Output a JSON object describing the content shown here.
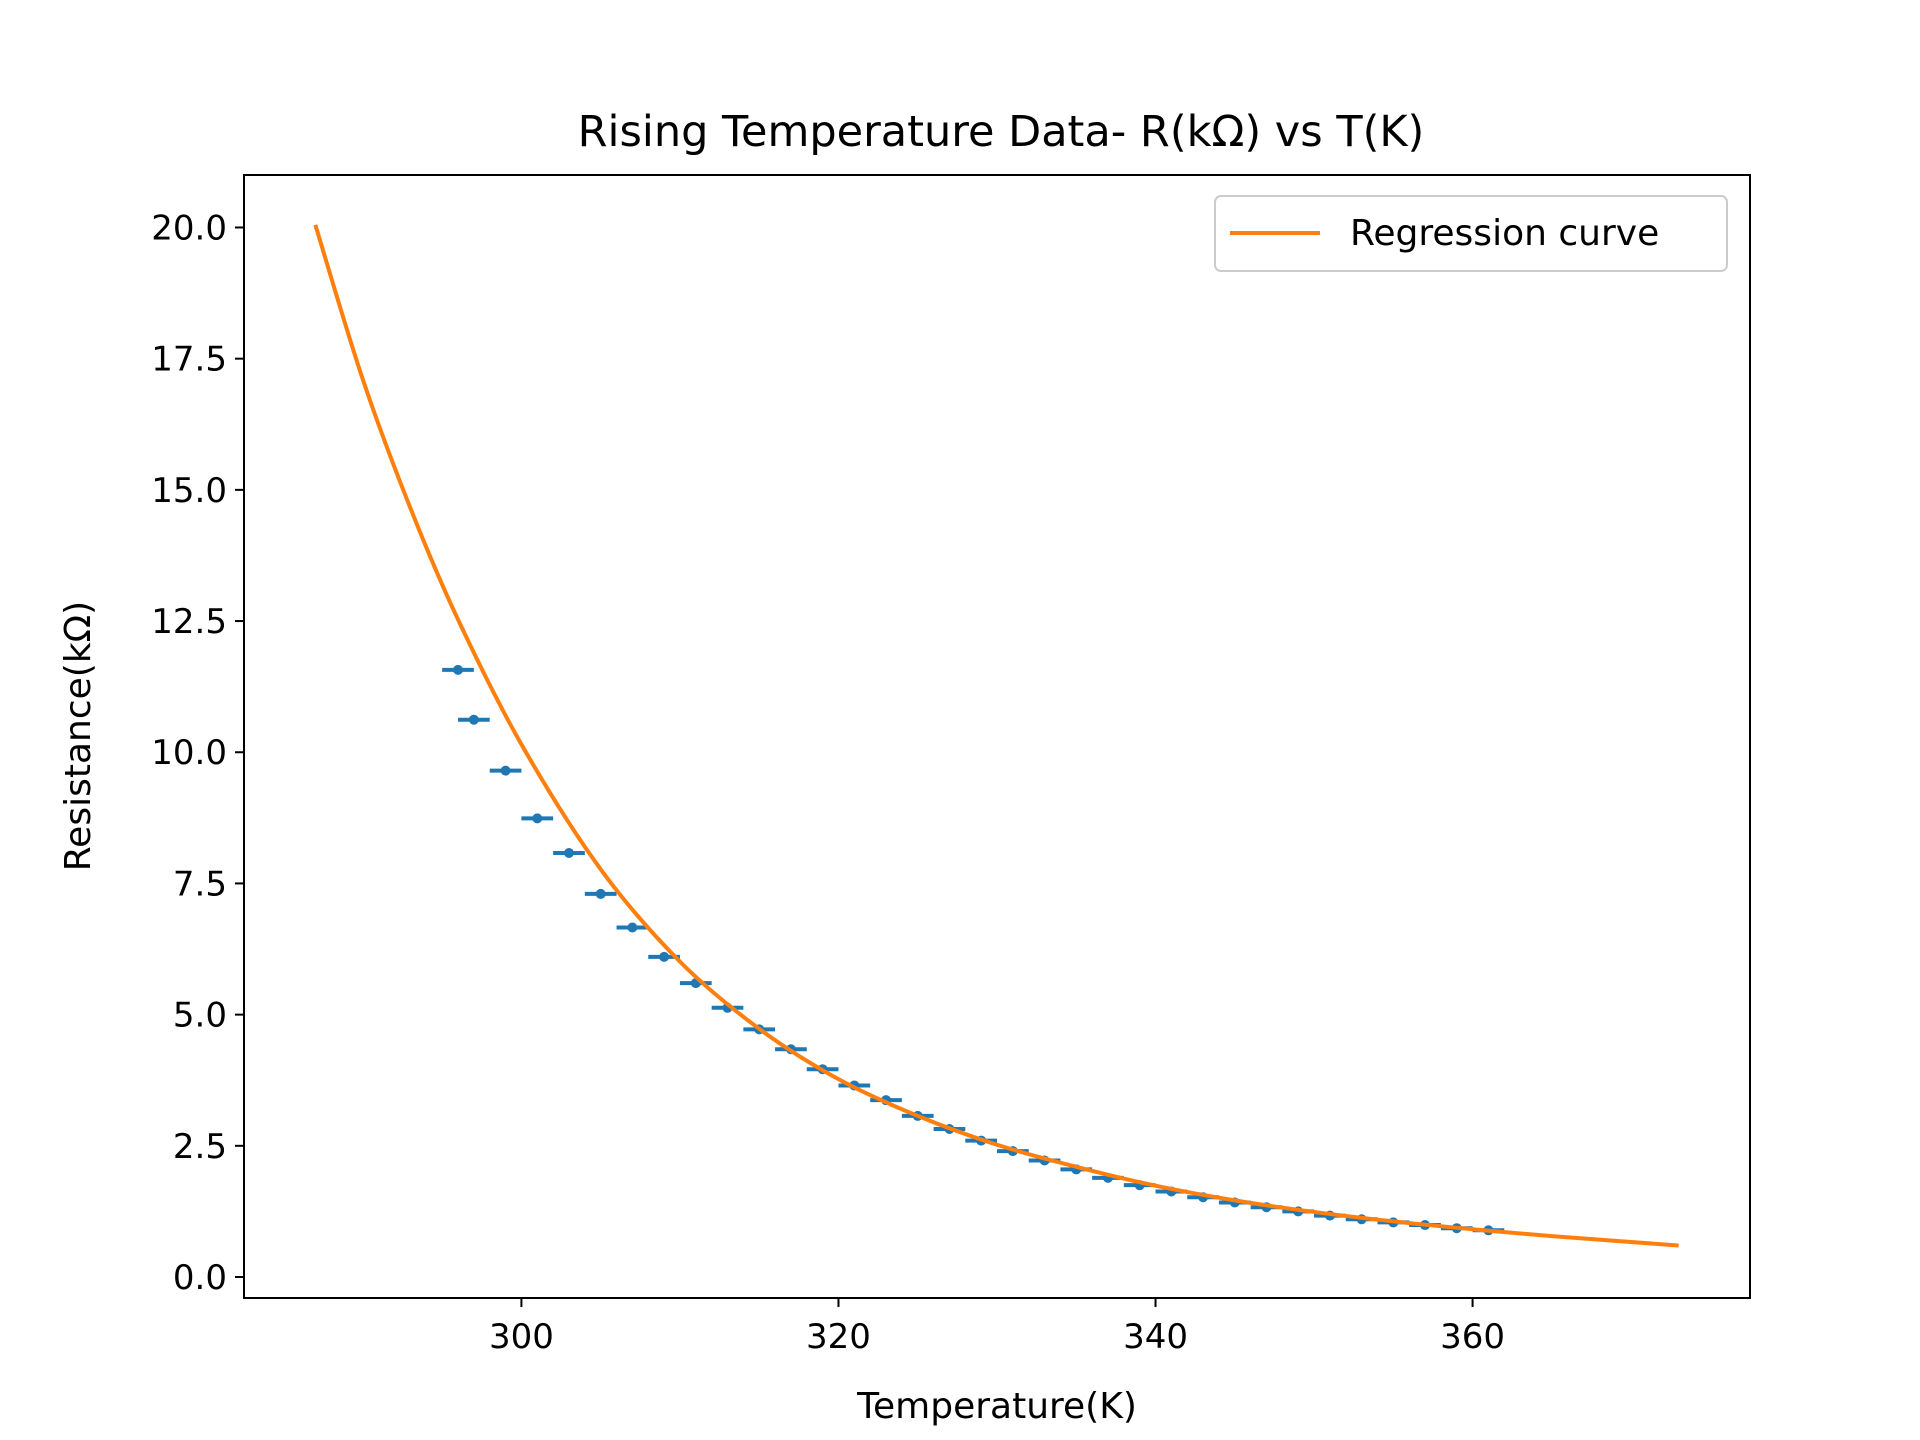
{
  "chart_data": {
    "type": "scatter",
    "title": "Rising Temperature Data- R(kΩ) vs T(K)",
    "xlabel": "Temperature(K)",
    "ylabel": "Resistance(kΩ)",
    "xlim": [
      282.5,
      377.5
    ],
    "ylim": [
      -0.4,
      21.0
    ],
    "xticks": [
      300,
      320,
      340,
      360
    ],
    "xtick_labels": [
      "300",
      "320",
      "340",
      "360"
    ],
    "yticks": [
      0,
      2.5,
      5,
      7.5,
      10,
      12.5,
      15,
      17.5,
      20
    ],
    "ytick_labels": [
      "0.0",
      "2.5",
      "5.0",
      "7.5",
      "10.0",
      "12.5",
      "15.0",
      "17.5",
      "20.0"
    ],
    "grid": false,
    "legend": {
      "position": "upper right",
      "entries": [
        "Regression curve"
      ]
    },
    "colors": {
      "data": "#1f77b4",
      "fit": "#ff7f0e"
    },
    "measured": {
      "x_error": 1.0,
      "x": [
        296,
        297,
        299,
        301,
        303,
        305,
        307,
        309,
        311,
        313,
        315,
        317,
        319,
        321,
        323,
        325,
        327,
        329,
        331,
        333,
        335,
        337,
        339,
        341,
        343,
        345,
        347,
        349,
        351,
        353,
        355,
        357,
        359,
        361
      ],
      "y": [
        11.57,
        10.62,
        9.65,
        8.74,
        8.08,
        7.3,
        6.66,
        6.1,
        5.6,
        5.13,
        4.72,
        4.34,
        3.96,
        3.65,
        3.37,
        3.07,
        2.82,
        2.6,
        2.4,
        2.22,
        2.05,
        1.89,
        1.75,
        1.63,
        1.52,
        1.42,
        1.33,
        1.25,
        1.17,
        1.1,
        1.04,
        0.99,
        0.93,
        0.89
      ]
    },
    "regression_curve": {
      "name": "Regression curve",
      "x": [
        287,
        290,
        293,
        296,
        300,
        305,
        310,
        315,
        320,
        325,
        330,
        335,
        340,
        345,
        350,
        355,
        360,
        365,
        373
      ],
      "y": [
        20.05,
        17.1,
        14.65,
        12.53,
        10.15,
        7.77,
        6.01,
        4.73,
        3.77,
        3.07,
        2.52,
        2.1,
        1.74,
        1.46,
        1.24,
        1.06,
        0.91,
        0.78,
        0.6
      ]
    }
  }
}
